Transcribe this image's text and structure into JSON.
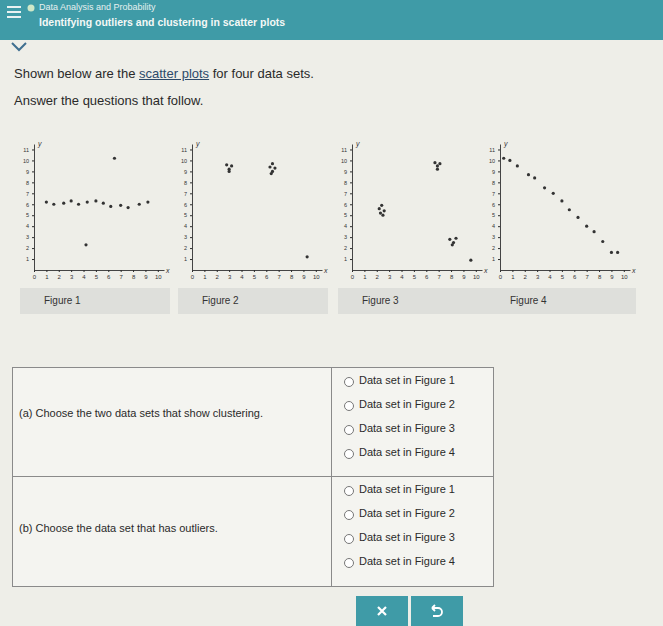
{
  "header": {
    "course": "Data Analysis and Probability",
    "topic": "Identifying outliers and clustering in scatter plots"
  },
  "intro": {
    "before": "Shown below are the ",
    "link": "scatter plots",
    "after": " for four data sets."
  },
  "instruction": "Answer the questions that follow.",
  "chart_data": [
    {
      "type": "scatter",
      "title": "Figure 1",
      "x_label": "x",
      "y_label": "y",
      "color": "#333333",
      "x": [
        1,
        1.6,
        2.4,
        3,
        3.6,
        4.3,
        5,
        5.6,
        6.2,
        7,
        7.6,
        8.5,
        9.2,
        6.5,
        4.2
      ],
      "y": [
        6.2,
        6.0,
        6.1,
        6.3,
        6.0,
        6.2,
        6.3,
        6.1,
        5.8,
        5.9,
        5.7,
        6.0,
        6.2,
        10.2,
        2.3
      ],
      "xlim": [
        0,
        10.5
      ],
      "ylim": [
        0,
        11.5
      ],
      "xticks": [
        0,
        1,
        2,
        3,
        4,
        5,
        6,
        7,
        8,
        9,
        10
      ],
      "yticks": [
        1,
        2,
        3,
        4,
        5,
        6,
        7,
        8,
        9,
        10,
        11
      ]
    },
    {
      "type": "scatter",
      "title": "Figure 2",
      "x_label": "x",
      "y_label": "y",
      "color": "#333333",
      "x": [
        2.8,
        3.0,
        3.2,
        3.0,
        6.3,
        6.5,
        6.7,
        6.5,
        6.4,
        9.3
      ],
      "y": [
        9.6,
        9.2,
        9.5,
        9.0,
        9.4,
        9.7,
        9.3,
        9.0,
        8.8,
        1.2
      ],
      "xlim": [
        0,
        10.5
      ],
      "ylim": [
        0,
        11.5
      ],
      "xticks": [
        0,
        1,
        2,
        3,
        4,
        5,
        6,
        7,
        8,
        9,
        10
      ],
      "yticks": [
        1,
        2,
        3,
        4,
        5,
        6,
        7,
        8,
        9,
        10,
        11
      ]
    },
    {
      "type": "scatter",
      "title": "Figure 3",
      "x_label": "x",
      "y_label": "y",
      "color": "#333333",
      "x": [
        2.2,
        2.4,
        2.6,
        2.3,
        2.5,
        6.7,
        6.9,
        7.1,
        6.9,
        7.9,
        8.2,
        8.4,
        8.1,
        9.6
      ],
      "y": [
        5.6,
        5.9,
        5.4,
        5.2,
        5.0,
        9.8,
        9.5,
        9.7,
        9.2,
        2.8,
        2.5,
        2.9,
        2.3,
        0.9
      ],
      "xlim": [
        0,
        10.5
      ],
      "ylim": [
        0,
        11.5
      ],
      "xticks": [
        0,
        1,
        2,
        3,
        4,
        5,
        6,
        7,
        8,
        9,
        10
      ],
      "yticks": [
        1,
        2,
        3,
        4,
        5,
        6,
        7,
        8,
        9,
        10,
        11
      ]
    },
    {
      "type": "scatter",
      "title": "Figure 4",
      "x_label": "x",
      "y_label": "y",
      "color": "#333333",
      "x": [
        0.3,
        0.8,
        1.4,
        2.3,
        2.8,
        3.6,
        4.3,
        5.0,
        5.6,
        6.3,
        7.0,
        7.6,
        8.3,
        9.0,
        9.5
      ],
      "y": [
        10.2,
        10.0,
        9.5,
        8.7,
        8.4,
        7.5,
        7.0,
        6.3,
        5.5,
        4.8,
        4.0,
        3.5,
        2.6,
        1.6,
        1.6
      ],
      "xlim": [
        0,
        10.5
      ],
      "ylim": [
        0,
        11.5
      ],
      "xticks": [
        0,
        1,
        2,
        3,
        4,
        5,
        6,
        7,
        8,
        9,
        10
      ],
      "yticks": [
        1,
        2,
        3,
        4,
        5,
        6,
        7,
        8,
        9,
        10,
        11
      ]
    }
  ],
  "questions": [
    {
      "label": "(a) Choose the two data sets that show clustering.",
      "options": [
        "Data set in Figure 1",
        "Data set in Figure 2",
        "Data set in Figure 3",
        "Data set in Figure 4"
      ]
    },
    {
      "label": "(b) Choose the data set that has outliers.",
      "options": [
        "Data set in Figure 1",
        "Data set in Figure 2",
        "Data set in Figure 3",
        "Data set in Figure 4"
      ]
    }
  ]
}
